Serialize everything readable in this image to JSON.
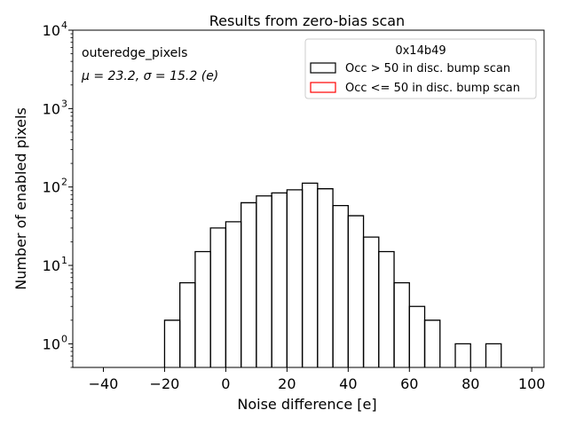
{
  "chart_data": {
    "type": "histogram",
    "title": "Results from zero-bias scan",
    "xlabel": "Noise difference [e]",
    "ylabel": "Number of enabled pixels",
    "xlim": [
      -50,
      104
    ],
    "ylim": [
      0.5,
      10000
    ],
    "yscale": "log",
    "grid": false,
    "x_ticks": [
      "−40",
      "−20",
      "0",
      "20",
      "40",
      "60",
      "80",
      "100"
    ],
    "x_tick_values": [
      -40,
      -20,
      0,
      20,
      40,
      60,
      80,
      100
    ],
    "y_ticks": [
      {
        "value": 1,
        "base": "10",
        "exp": "0"
      },
      {
        "value": 10,
        "base": "10",
        "exp": "1"
      },
      {
        "value": 100,
        "base": "10",
        "exp": "2"
      },
      {
        "value": 1000,
        "base": "10",
        "exp": "3"
      },
      {
        "value": 10000,
        "base": "10",
        "exp": "4"
      }
    ],
    "annotations": {
      "name": "outeredge_pixels",
      "stats": "μ = 23.2, σ = 15.2 (e)"
    },
    "legend": {
      "placement": "top-right",
      "title": "0x14b49",
      "entries": [
        {
          "label": "Occ > 50 in disc. bump scan",
          "color": "#000000"
        },
        {
          "label": "Occ <= 50 in disc. bump scan",
          "color": "#ff0000"
        }
      ]
    },
    "bin_width": 5,
    "series": [
      {
        "name": "Occ > 50 in disc. bump scan",
        "color": "#000000",
        "bins": [
          {
            "x0": -20,
            "y": 2
          },
          {
            "x0": -15,
            "y": 6
          },
          {
            "x0": -10,
            "y": 15
          },
          {
            "x0": -5,
            "y": 30
          },
          {
            "x0": 0,
            "y": 36
          },
          {
            "x0": 5,
            "y": 63
          },
          {
            "x0": 10,
            "y": 77
          },
          {
            "x0": 15,
            "y": 84
          },
          {
            "x0": 20,
            "y": 92
          },
          {
            "x0": 25,
            "y": 112
          },
          {
            "x0": 30,
            "y": 95
          },
          {
            "x0": 35,
            "y": 58
          },
          {
            "x0": 40,
            "y": 43
          },
          {
            "x0": 45,
            "y": 23
          },
          {
            "x0": 50,
            "y": 15
          },
          {
            "x0": 55,
            "y": 6
          },
          {
            "x0": 60,
            "y": 3
          },
          {
            "x0": 65,
            "y": 2
          },
          {
            "x0": 75,
            "y": 1
          },
          {
            "x0": 85,
            "y": 1
          }
        ]
      },
      {
        "name": "Occ <= 50 in disc. bump scan",
        "color": "#ff0000",
        "bins": []
      }
    ]
  }
}
